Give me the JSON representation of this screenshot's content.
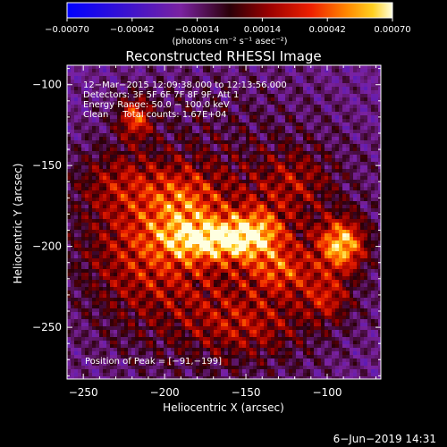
{
  "chart_data": {
    "type": "heatmap",
    "title": "Reconstructed RHESSI Image",
    "xlabel": "Heliocentric X (arcsec)",
    "ylabel": "Heliocentric Y (arcsec)",
    "xlim": [
      -260,
      -67
    ],
    "ylim": [
      -282,
      -88
    ],
    "x_ticks": [
      -250,
      -200,
      -150,
      -100
    ],
    "y_ticks": [
      -100,
      -150,
      -200,
      -250
    ],
    "x_tick_labels": [
      "−250",
      "−200",
      "−150",
      "−100"
    ],
    "y_tick_labels": [
      "−100",
      "−150",
      "−200",
      "−250"
    ],
    "colorbar": {
      "range": [
        -0.0007,
        0.0007
      ],
      "tick_values": [
        -0.0007,
        -0.00042,
        -0.00014,
        0.00014,
        0.00042,
        0.0007
      ],
      "tick_labels": [
        "−0.00070",
        "−0.00042",
        "−0.00014",
        "0.00014",
        "0.00042",
        "0.00070"
      ],
      "unit_label": "(photons cm⁻² s⁻¹ asec⁻²)"
    },
    "annotations": [
      "12−Mar−2015 12:09:38.000 to 12:13:56.000",
      "Detectors: 3F 5F 6F 7F 8F 9F, Att 1",
      "Energy Range: 50.0 − 100.0 keV",
      "Clean     Total counts: 1.67E+04"
    ],
    "peak_label": "Position of Peak = [−91,−199]",
    "peak_position": [
      -91,
      -199
    ],
    "sources": [
      {
        "x": -91,
        "y": -199,
        "sx": 10,
        "sy": 11,
        "amp": 1.0
      },
      {
        "x": -168,
        "y": -196,
        "sx": 22,
        "sy": 9,
        "amp": 0.82
      },
      {
        "x": -143,
        "y": -190,
        "sx": 12,
        "sy": 11,
        "amp": 0.55
      },
      {
        "x": -218,
        "y": -120,
        "sx": 7,
        "sy": 9,
        "amp": 0.72
      },
      {
        "x": -128,
        "y": -215,
        "sx": 15,
        "sy": 10,
        "amp": 0.5
      },
      {
        "x": -188,
        "y": -172,
        "sx": 18,
        "sy": 15,
        "amp": 0.45
      },
      {
        "x": -210,
        "y": -205,
        "sx": 28,
        "sy": 28,
        "amp": 0.42
      },
      {
        "x": -100,
        "y": -232,
        "sx": 10,
        "sy": 10,
        "amp": 0.45
      },
      {
        "x": -150,
        "y": -248,
        "sx": 25,
        "sy": 14,
        "amp": 0.35
      },
      {
        "x": -230,
        "y": -160,
        "sx": 18,
        "sy": 14,
        "amp": 0.3
      },
      {
        "x": -120,
        "y": -160,
        "sx": 16,
        "sy": 14,
        "amp": 0.32
      }
    ],
    "grid": false
  },
  "footer": {
    "date": "6−Jun−2019 14:31"
  }
}
